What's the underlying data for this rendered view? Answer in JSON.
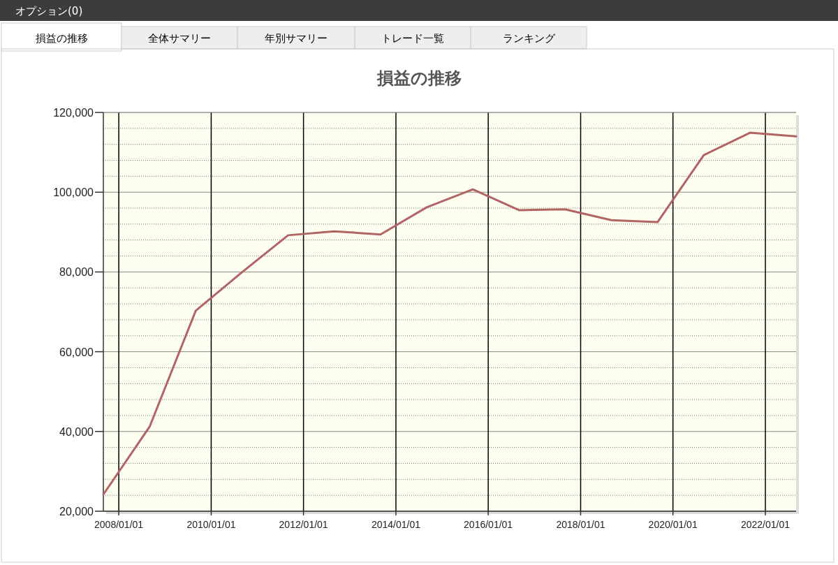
{
  "chart_data": {
    "type": "line",
    "title": "損益の推移",
    "annotations": [
      "オプション(0)",
      "損益の推移",
      "全体サマリー",
      "年別サマリー",
      "トレード一覧",
      "ランキング"
    ],
    "x": [
      "2007-09",
      "2008-09",
      "2009-09",
      "2010-09",
      "2011-09",
      "2012-09",
      "2013-09",
      "2014-09",
      "2015-09",
      "2016-09",
      "2017-09",
      "2018-09",
      "2019-09",
      "2020-09",
      "2021-09",
      "2022-09"
    ],
    "series": [
      {
        "color": "#b06464",
        "values": [
          24200,
          41200,
          70300,
          79900,
          89200,
          90200,
          89400,
          96200,
          100700,
          95500,
          95700,
          93000,
          92500,
          109300,
          114900,
          114000
        ]
      }
    ],
    "xlim": [
      "2007-09",
      "2022-09"
    ],
    "xticks": [
      {
        "value": "2008-01-01",
        "label": "2008/01/01"
      },
      {
        "value": "2010-01-01",
        "label": "2010/01/01"
      },
      {
        "value": "2012-01-01",
        "label": "2012/01/01"
      },
      {
        "value": "2014-01-01",
        "label": "2014/01/01"
      },
      {
        "value": "2016-01-01",
        "label": "2016/01/01"
      },
      {
        "value": "2018-01-01",
        "label": "2018/01/01"
      },
      {
        "value": "2020-01-01",
        "label": "2020/01/01"
      },
      {
        "value": "2022-01-01",
        "label": "2022/01/01"
      }
    ],
    "ylim": [
      20000,
      120000
    ],
    "yticks": [
      {
        "value": 20000,
        "label": "20,000"
      },
      {
        "value": 40000,
        "label": "40,000"
      },
      {
        "value": 60000,
        "label": "60,000"
      },
      {
        "value": 80000,
        "label": "80,000"
      },
      {
        "value": 100000,
        "label": "100,000"
      },
      {
        "value": 120000,
        "label": "120,000"
      }
    ],
    "grid": true,
    "marker": "none",
    "line_style": "solid"
  }
}
